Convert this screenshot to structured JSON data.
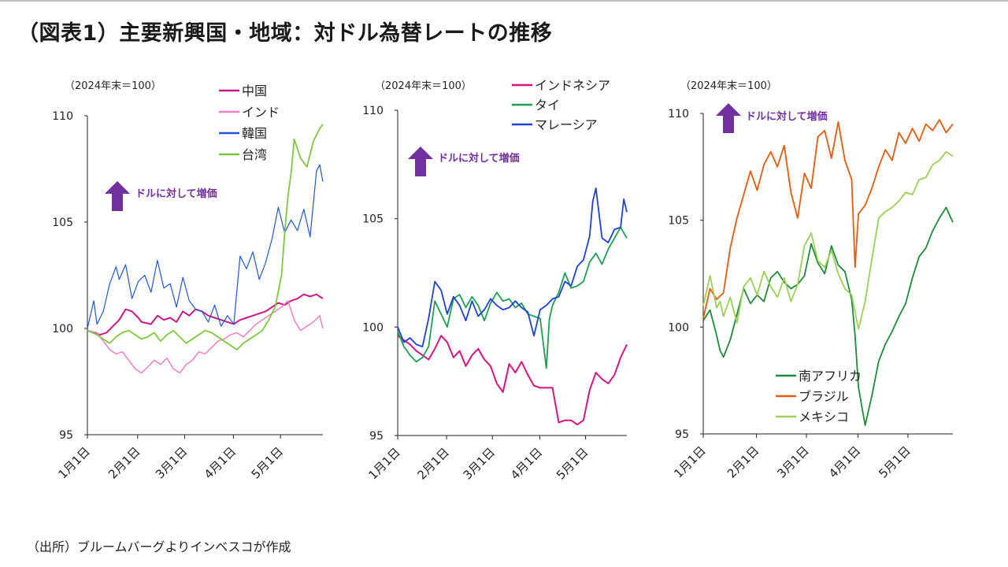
{
  "title": "（図表1）主要新興国・地域：対ドル為替レートの推移",
  "source": "（出所）ブルームバーグよりインベスコが作成",
  "chart_data": [
    {
      "type": "line",
      "unit_label": "（2024年末＝100）",
      "annotation": "ドルに対して増価",
      "ylim": [
        95,
        110
      ],
      "yticks": [
        95,
        100,
        105,
        110
      ],
      "x_range": [
        "1月1日",
        "5月末"
      ],
      "xticks": [
        "1月1日",
        "2月1日",
        "3月1日",
        "4月1日",
        "5月1日"
      ],
      "grid": false,
      "legend": "top-right",
      "series": [
        {
          "name": "中国",
          "color": "#c81a82",
          "width": 2,
          "x": [
            0,
            8,
            12,
            16,
            20,
            24,
            28,
            32,
            34,
            40,
            44,
            48,
            52,
            56,
            60,
            64,
            68,
            72,
            76,
            80,
            84,
            88,
            92,
            96,
            100,
            104,
            108,
            112,
            116,
            120,
            124,
            128,
            132,
            136,
            140,
            144,
            148
          ],
          "y": [
            99.9,
            99.7,
            99.8,
            100.1,
            100.4,
            100.9,
            100.8,
            100.5,
            100.3,
            100.2,
            100.6,
            100.4,
            100.5,
            100.3,
            100.8,
            100.6,
            100.9,
            100.8,
            100.6,
            100.5,
            100.4,
            100.3,
            100.2,
            100.4,
            100.5,
            100.6,
            100.7,
            100.8,
            101.0,
            101.2,
            101.1,
            101.3,
            101.4,
            101.6,
            101.5,
            101.6,
            101.4
          ]
        },
        {
          "name": "インド",
          "color": "#f07fc4",
          "width": 1.5,
          "x": [
            0,
            6,
            10,
            14,
            18,
            22,
            26,
            30,
            34,
            38,
            42,
            46,
            50,
            54,
            58,
            62,
            66,
            70,
            74,
            78,
            82,
            86,
            90,
            94,
            98,
            102,
            106,
            110,
            114,
            118,
            122,
            126,
            130,
            134,
            138,
            142,
            146,
            148
          ],
          "y": [
            99.9,
            99.8,
            99.4,
            99.0,
            98.8,
            98.9,
            98.5,
            98.1,
            97.9,
            98.2,
            98.5,
            98.3,
            98.6,
            98.1,
            97.9,
            98.3,
            98.5,
            98.9,
            98.8,
            99.1,
            99.4,
            99.5,
            99.7,
            99.8,
            99.6,
            99.9,
            100.2,
            100.4,
            100.6,
            100.8,
            101.0,
            101.3,
            100.4,
            99.9,
            100.1,
            100.3,
            100.6,
            100.0
          ]
        },
        {
          "name": "韓国",
          "color": "#1f56d6",
          "width": 1.2,
          "x": [
            0,
            4,
            6,
            10,
            14,
            18,
            20,
            24,
            28,
            32,
            36,
            40,
            44,
            48,
            52,
            56,
            60,
            64,
            68,
            72,
            76,
            80,
            84,
            88,
            92,
            96,
            100,
            104,
            108,
            112,
            116,
            120,
            124,
            128,
            132,
            136,
            140,
            144,
            146,
            148
          ],
          "y": [
            100.0,
            101.3,
            100.2,
            100.8,
            102.1,
            102.9,
            102.3,
            103.0,
            101.4,
            102.2,
            102.5,
            101.7,
            103.2,
            101.9,
            102.1,
            101.0,
            102.4,
            101.3,
            100.9,
            100.8,
            100.3,
            101.1,
            100.1,
            100.6,
            100.2,
            103.4,
            102.8,
            103.6,
            102.3,
            103.1,
            104.2,
            105.7,
            104.5,
            105.1,
            104.6,
            105.6,
            104.3,
            107.4,
            107.7,
            106.9
          ]
        },
        {
          "name": "台湾",
          "color": "#7fc73e",
          "width": 1.8,
          "x": [
            0,
            6,
            10,
            14,
            18,
            22,
            26,
            30,
            34,
            38,
            42,
            46,
            50,
            54,
            58,
            62,
            66,
            70,
            74,
            78,
            82,
            86,
            90,
            94,
            98,
            102,
            106,
            110,
            114,
            118,
            122,
            124,
            126,
            128,
            130,
            134,
            138,
            142,
            146,
            148
          ],
          "y": [
            99.9,
            99.7,
            99.5,
            99.3,
            99.6,
            99.8,
            99.9,
            99.7,
            99.5,
            99.6,
            99.8,
            99.4,
            99.7,
            99.9,
            99.6,
            99.3,
            99.5,
            99.7,
            99.9,
            99.8,
            99.6,
            99.4,
            99.2,
            99.0,
            99.3,
            99.5,
            99.7,
            99.9,
            100.4,
            101.0,
            102.5,
            104.5,
            106.2,
            107.3,
            108.9,
            108.0,
            107.6,
            108.8,
            109.4,
            109.6
          ]
        }
      ]
    },
    {
      "type": "line",
      "unit_label": "（2024年末＝100）",
      "annotation": "ドルに対して増価",
      "ylim": [
        95,
        110
      ],
      "yticks": [
        95,
        100,
        105,
        110
      ],
      "x_range": [
        "1月1日",
        "5月末"
      ],
      "xticks": [
        "1月1日",
        "2月1日",
        "3月1日",
        "4月1日",
        "5月1日"
      ],
      "grid": false,
      "legend": "top-right",
      "series": [
        {
          "name": "インドネシア",
          "color": "#d6137f",
          "width": 2,
          "x": [
            0,
            4,
            8,
            12,
            16,
            20,
            24,
            28,
            32,
            36,
            40,
            44,
            48,
            52,
            56,
            60,
            64,
            68,
            72,
            76,
            80,
            84,
            88,
            92,
            96,
            100,
            104,
            108,
            112,
            116,
            120,
            124,
            128,
            132,
            136,
            140,
            144,
            148
          ],
          "y": [
            99.6,
            99.4,
            99.2,
            98.9,
            98.7,
            98.5,
            99.0,
            99.6,
            99.3,
            98.6,
            98.9,
            98.2,
            98.7,
            99.0,
            98.5,
            98.2,
            97.4,
            97.0,
            98.3,
            97.9,
            98.4,
            97.8,
            97.3,
            97.2,
            97.2,
            97.2,
            95.6,
            95.7,
            95.7,
            95.5,
            95.7,
            97.1,
            97.9,
            97.6,
            97.4,
            97.8,
            98.6,
            99.2
          ]
        },
        {
          "name": "タイ",
          "color": "#1f9e55",
          "width": 1.8,
          "x": [
            0,
            4,
            8,
            12,
            16,
            20,
            24,
            28,
            32,
            36,
            40,
            44,
            48,
            52,
            56,
            60,
            64,
            68,
            72,
            76,
            80,
            84,
            88,
            92,
            96,
            98,
            100,
            104,
            108,
            112,
            116,
            120,
            124,
            128,
            132,
            136,
            140,
            144,
            148
          ],
          "y": [
            99.8,
            99.1,
            98.7,
            98.4,
            98.6,
            99.1,
            101.2,
            100.6,
            100.0,
            101.3,
            101.5,
            100.9,
            101.4,
            101.0,
            100.3,
            101.1,
            101.6,
            101.2,
            101.3,
            100.9,
            101.1,
            100.6,
            100.5,
            100.4,
            98.1,
            100.4,
            101.0,
            101.6,
            102.5,
            101.8,
            101.9,
            102.1,
            103.0,
            103.4,
            102.9,
            103.6,
            104.1,
            104.6,
            104.1
          ]
        },
        {
          "name": "マレーシア",
          "color": "#1f3fd6",
          "width": 1.8,
          "x": [
            0,
            4,
            8,
            12,
            16,
            20,
            24,
            28,
            32,
            36,
            40,
            44,
            48,
            52,
            56,
            60,
            64,
            68,
            72,
            76,
            80,
            84,
            88,
            92,
            96,
            100,
            104,
            108,
            112,
            116,
            120,
            124,
            126,
            128,
            132,
            136,
            140,
            144,
            146,
            148
          ],
          "y": [
            100.0,
            99.3,
            99.5,
            99.2,
            99.1,
            100.4,
            102.1,
            101.7,
            100.6,
            101.4,
            101.0,
            100.3,
            101.2,
            100.5,
            100.8,
            101.3,
            101.0,
            100.8,
            100.9,
            101.2,
            100.9,
            100.7,
            99.6,
            100.8,
            101.0,
            101.3,
            101.4,
            102.1,
            101.9,
            102.8,
            103.1,
            104.2,
            105.8,
            106.4,
            104.1,
            103.9,
            104.5,
            104.6,
            105.9,
            105.3
          ]
        }
      ]
    },
    {
      "type": "line",
      "unit_label": "（2024年末＝100）",
      "annotation": "ドルに対して増価",
      "ylim": [
        95,
        110
      ],
      "yticks": [
        95,
        100,
        105,
        110
      ],
      "x_range": [
        "1月1日",
        "5月末"
      ],
      "xticks": [
        "1月1日",
        "2月1日",
        "3月1日",
        "4月1日",
        "5月1日"
      ],
      "grid": false,
      "legend": "bottom-middle",
      "series": [
        {
          "name": "南アフリカ",
          "color": "#1f8a3a",
          "width": 1.8,
          "x": [
            0,
            4,
            8,
            10,
            12,
            16,
            20,
            24,
            28,
            32,
            36,
            40,
            44,
            48,
            52,
            56,
            60,
            64,
            68,
            72,
            76,
            80,
            84,
            88,
            90,
            92,
            94,
            96,
            100,
            104,
            108,
            112,
            116,
            120,
            124,
            128,
            132,
            136,
            140,
            144,
            148
          ],
          "y": [
            100.3,
            100.8,
            99.6,
            98.9,
            98.6,
            99.4,
            100.6,
            101.8,
            101.1,
            101.5,
            101.2,
            102.3,
            102.6,
            102.1,
            101.8,
            102.0,
            102.4,
            103.9,
            103.0,
            102.5,
            103.8,
            102.9,
            102.6,
            101.3,
            99.6,
            97.2,
            96.3,
            95.4,
            96.8,
            98.4,
            99.2,
            99.8,
            100.5,
            101.1,
            102.3,
            103.3,
            103.7,
            104.5,
            105.1,
            105.6,
            104.9
          ]
        },
        {
          "name": "ブラジル",
          "color": "#e8590c",
          "width": 1.8,
          "x": [
            0,
            4,
            8,
            12,
            16,
            20,
            24,
            28,
            32,
            36,
            40,
            44,
            48,
            52,
            56,
            60,
            64,
            68,
            72,
            76,
            80,
            84,
            88,
            90,
            92,
            96,
            100,
            104,
            108,
            112,
            116,
            120,
            124,
            128,
            132,
            136,
            140,
            144,
            148
          ],
          "y": [
            100.4,
            101.8,
            101.3,
            101.6,
            103.7,
            105.1,
            106.2,
            107.3,
            106.4,
            107.6,
            108.2,
            107.5,
            108.5,
            106.3,
            105.1,
            107.2,
            106.5,
            108.9,
            109.2,
            107.9,
            109.6,
            107.8,
            106.9,
            102.8,
            105.3,
            105.7,
            106.5,
            107.5,
            108.3,
            107.8,
            109.1,
            108.6,
            109.3,
            108.7,
            109.5,
            109.2,
            109.7,
            109.1,
            109.5
          ]
        },
        {
          "name": "メキシコ",
          "color": "#9ccf58",
          "width": 1.8,
          "x": [
            0,
            4,
            8,
            10,
            12,
            16,
            20,
            24,
            28,
            32,
            36,
            40,
            44,
            48,
            52,
            56,
            60,
            64,
            68,
            72,
            76,
            80,
            84,
            88,
            92,
            96,
            100,
            104,
            108,
            112,
            116,
            120,
            124,
            128,
            132,
            136,
            140,
            144,
            148
          ],
          "y": [
            101.0,
            102.4,
            100.9,
            101.2,
            100.5,
            101.4,
            100.2,
            101.9,
            102.3,
            101.5,
            102.6,
            101.9,
            101.4,
            102.3,
            101.2,
            102.0,
            103.8,
            104.4,
            103.1,
            102.8,
            103.6,
            102.5,
            101.8,
            101.5,
            99.9,
            101.2,
            103.2,
            105.1,
            105.4,
            105.6,
            105.9,
            106.3,
            106.2,
            106.9,
            107.0,
            107.6,
            107.8,
            108.2,
            108.0
          ]
        }
      ]
    }
  ]
}
